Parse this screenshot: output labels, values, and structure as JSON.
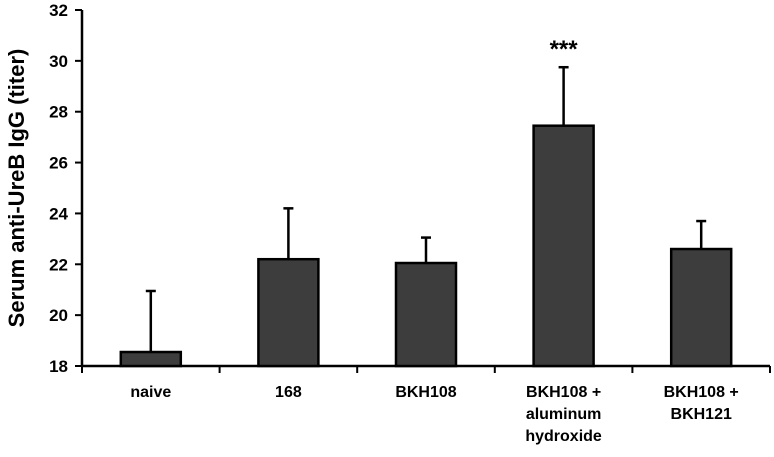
{
  "chart_data": {
    "type": "bar",
    "title": "",
    "xlabel": "",
    "ylabel": "Serum anti-UreB IgG (titer)",
    "ylim": [
      18,
      32
    ],
    "yticks": [
      18,
      20,
      22,
      24,
      26,
      28,
      30,
      32
    ],
    "grid": false,
    "categories": [
      [
        "naive"
      ],
      [
        "168"
      ],
      [
        "BKH108"
      ],
      [
        "BKH108 +",
        "aluminum",
        "hydroxide"
      ],
      [
        "BKH108 +",
        "BKH121"
      ]
    ],
    "values": [
      18.55,
      22.2,
      22.05,
      27.45,
      22.6
    ],
    "error_upper": [
      2.4,
      2.0,
      1.0,
      2.3,
      1.1
    ],
    "bar_color": "#3d3d3d",
    "annotations": [
      {
        "category_index": 3,
        "text": "***"
      }
    ]
  }
}
